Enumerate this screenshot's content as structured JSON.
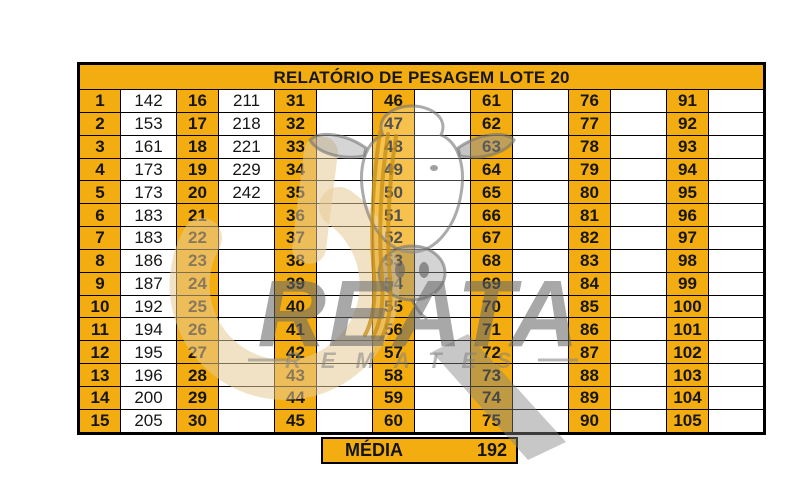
{
  "title": "RELATÓRIO DE PESAGEM LOTE  20",
  "summary": {
    "label": "MÉDIA",
    "value": "192"
  },
  "watermark": {
    "brand": "REATA",
    "tagline": "REMATES"
  },
  "colors": {
    "gold": "#F3AD10",
    "grid_border": "#000000",
    "cell_text": "#171614",
    "watermark_gray": "#8C8C8C",
    "watermark_tan": "#E7CB96"
  },
  "table": {
    "rows": 15,
    "groups": [
      {
        "start": 1,
        "values": [
          "142",
          "153",
          "161",
          "173",
          "173",
          "183",
          "183",
          "186",
          "187",
          "192",
          "194",
          "195",
          "196",
          "200",
          "205"
        ]
      },
      {
        "start": 16,
        "values": [
          "211",
          "218",
          "221",
          "229",
          "242",
          "",
          "",
          "",
          "",
          "",
          "",
          "",
          "",
          "",
          ""
        ]
      },
      {
        "start": 31,
        "values": [
          "",
          "",
          "",
          "",
          "",
          "",
          "",
          "",
          "",
          "",
          "",
          "",
          "",
          "",
          ""
        ]
      },
      {
        "start": 46,
        "values": [
          "",
          "",
          "",
          "",
          "",
          "",
          "",
          "",
          "",
          "",
          "",
          "",
          "",
          "",
          ""
        ]
      },
      {
        "start": 61,
        "values": [
          "",
          "",
          "",
          "",
          "",
          "",
          "",
          "",
          "",
          "",
          "",
          "",
          "",
          "",
          ""
        ]
      },
      {
        "start": 76,
        "values": [
          "",
          "",
          "",
          "",
          "",
          "",
          "",
          "",
          "",
          "",
          "",
          "",
          "",
          "",
          ""
        ]
      },
      {
        "start": 91,
        "values": [
          "",
          "",
          "",
          "",
          "",
          "",
          "",
          "",
          "",
          "",
          "",
          "",
          "",
          "",
          ""
        ]
      }
    ]
  }
}
